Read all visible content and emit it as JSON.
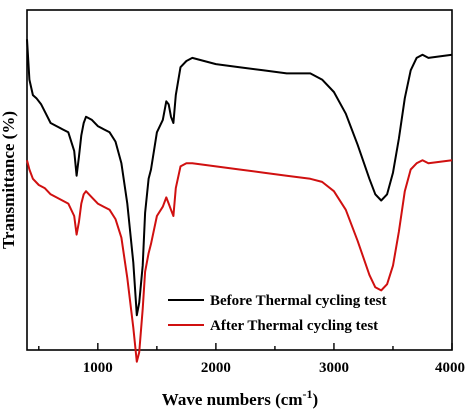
{
  "chart_data": {
    "type": "line",
    "xlabel": "Wave numbers (cm",
    "xlabel_sup": "-1",
    "xlabel_close": ")",
    "ylabel": "Transmittance (%)",
    "xlim": [
      400,
      4000
    ],
    "xticks": [
      "1000",
      "2000",
      "3000",
      "4000"
    ],
    "legend_position": "bottom-right",
    "series": [
      {
        "name": "Before Thermal cycling test",
        "color": "#000000",
        "points": [
          [
            400,
            97
          ],
          [
            420,
            84
          ],
          [
            450,
            79
          ],
          [
            480,
            78
          ],
          [
            520,
            76
          ],
          [
            560,
            73
          ],
          [
            600,
            70
          ],
          [
            650,
            69
          ],
          [
            700,
            68
          ],
          [
            750,
            67
          ],
          [
            800,
            61
          ],
          [
            820,
            53
          ],
          [
            840,
            59
          ],
          [
            860,
            66
          ],
          [
            880,
            70
          ],
          [
            900,
            72
          ],
          [
            950,
            71
          ],
          [
            1000,
            69
          ],
          [
            1050,
            68
          ],
          [
            1100,
            67
          ],
          [
            1150,
            64
          ],
          [
            1200,
            57
          ],
          [
            1250,
            44
          ],
          [
            1300,
            25
          ],
          [
            1330,
            8
          ],
          [
            1350,
            12
          ],
          [
            1380,
            24
          ],
          [
            1400,
            41
          ],
          [
            1430,
            52
          ],
          [
            1450,
            55
          ],
          [
            1500,
            67
          ],
          [
            1550,
            71
          ],
          [
            1580,
            77
          ],
          [
            1600,
            76
          ],
          [
            1620,
            72
          ],
          [
            1640,
            70
          ],
          [
            1660,
            79
          ],
          [
            1700,
            88
          ],
          [
            1750,
            90
          ],
          [
            1800,
            91
          ],
          [
            2000,
            89
          ],
          [
            2200,
            88
          ],
          [
            2400,
            87
          ],
          [
            2600,
            86
          ],
          [
            2800,
            86
          ],
          [
            2900,
            84
          ],
          [
            3000,
            80
          ],
          [
            3100,
            73
          ],
          [
            3200,
            63
          ],
          [
            3300,
            52
          ],
          [
            3350,
            47
          ],
          [
            3400,
            45
          ],
          [
            3450,
            47
          ],
          [
            3500,
            54
          ],
          [
            3550,
            65
          ],
          [
            3600,
            78
          ],
          [
            3650,
            87
          ],
          [
            3700,
            91
          ],
          [
            3750,
            92
          ],
          [
            3800,
            91
          ],
          [
            4000,
            92
          ]
        ]
      },
      {
        "name": "After Thermal cycling test",
        "color": "#d01010",
        "points": [
          [
            400,
            58
          ],
          [
            420,
            55
          ],
          [
            450,
            52
          ],
          [
            500,
            50
          ],
          [
            550,
            49
          ],
          [
            600,
            47
          ],
          [
            650,
            46
          ],
          [
            700,
            45
          ],
          [
            750,
            44
          ],
          [
            800,
            40
          ],
          [
            820,
            34
          ],
          [
            840,
            38
          ],
          [
            860,
            44
          ],
          [
            880,
            47
          ],
          [
            900,
            48
          ],
          [
            950,
            46
          ],
          [
            1000,
            44
          ],
          [
            1050,
            43
          ],
          [
            1100,
            42
          ],
          [
            1150,
            39
          ],
          [
            1200,
            33
          ],
          [
            1250,
            20
          ],
          [
            1300,
            4
          ],
          [
            1330,
            -7
          ],
          [
            1350,
            -4
          ],
          [
            1380,
            10
          ],
          [
            1400,
            22
          ],
          [
            1430,
            28
          ],
          [
            1450,
            31
          ],
          [
            1500,
            40
          ],
          [
            1550,
            43
          ],
          [
            1580,
            46
          ],
          [
            1600,
            44
          ],
          [
            1620,
            42
          ],
          [
            1640,
            40
          ],
          [
            1660,
            49
          ],
          [
            1700,
            56
          ],
          [
            1750,
            57
          ],
          [
            1800,
            57
          ],
          [
            2000,
            56
          ],
          [
            2200,
            55
          ],
          [
            2400,
            54
          ],
          [
            2600,
            53
          ],
          [
            2800,
            52
          ],
          [
            2900,
            51
          ],
          [
            3000,
            48
          ],
          [
            3100,
            42
          ],
          [
            3200,
            32
          ],
          [
            3300,
            21
          ],
          [
            3350,
            17
          ],
          [
            3400,
            16
          ],
          [
            3450,
            18
          ],
          [
            3500,
            24
          ],
          [
            3550,
            35
          ],
          [
            3600,
            48
          ],
          [
            3650,
            55
          ],
          [
            3700,
            57
          ],
          [
            3750,
            58
          ],
          [
            3800,
            57
          ],
          [
            4000,
            58
          ]
        ]
      }
    ]
  }
}
